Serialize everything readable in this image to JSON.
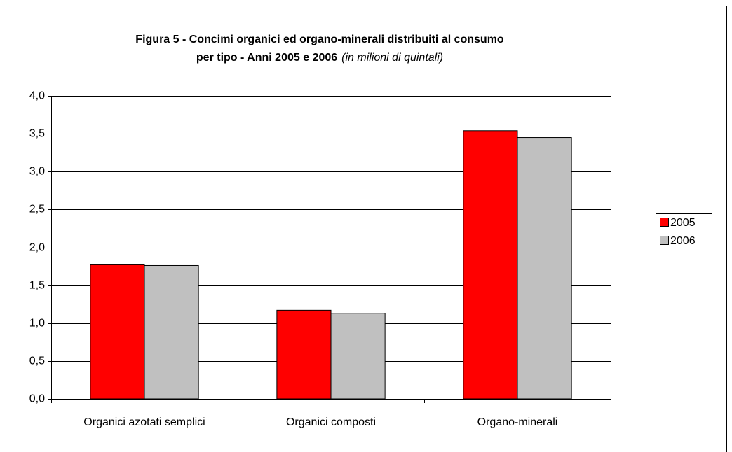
{
  "chart_data": {
    "type": "bar",
    "title": [
      "Figura 5 - Concimi organici ed organo-minerali distribuiti al consumo",
      "per tipo - Anni 2005 e 2006"
    ],
    "subtitle": "(in milioni di quintali)",
    "categories": [
      "Organici azotati semplici",
      "Organici composti",
      "Organo-minerali"
    ],
    "series": [
      {
        "name": "2005",
        "color": "#ff0000",
        "values": [
          1.77,
          1.17,
          3.54
        ]
      },
      {
        "name": "2006",
        "color": "#c0c0c0",
        "values": [
          1.76,
          1.13,
          3.45
        ]
      }
    ],
    "ylim": [
      0,
      4
    ],
    "yticks": [
      {
        "value": 0,
        "label": "0,0"
      },
      {
        "value": 0.5,
        "label": "0,5"
      },
      {
        "value": 1,
        "label": "1,0"
      },
      {
        "value": 1.5,
        "label": "1,5"
      },
      {
        "value": 2,
        "label": "2,0"
      },
      {
        "value": 2.5,
        "label": "2,5"
      },
      {
        "value": 3,
        "label": "3,0"
      },
      {
        "value": 3.5,
        "label": "3,5"
      },
      {
        "value": 4,
        "label": "4,0"
      }
    ],
    "grid": true,
    "legend": "right"
  }
}
